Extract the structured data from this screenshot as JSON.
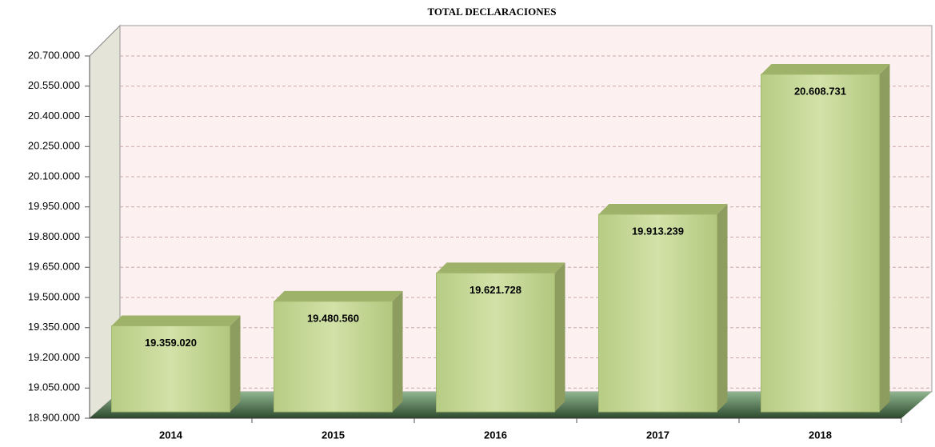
{
  "chart_data": {
    "type": "bar3d",
    "title": "TOTAL  DECLARACIONES",
    "categories": [
      "2014",
      "2015",
      "2016",
      "2017",
      "2018"
    ],
    "values": [
      19359020,
      19480560,
      19621728,
      19913239,
      20608731
    ],
    "value_labels": [
      "19.359.020",
      "19.480.560",
      "19.621.728",
      "19.913.239",
      "20.608.731"
    ],
    "color": "#c5d798",
    "ylim": [
      18900000,
      20700000
    ],
    "yticks": [
      {
        "value": 18900000,
        "label": "18.900.000"
      },
      {
        "value": 19050000,
        "label": "19.050.000"
      },
      {
        "value": 19200000,
        "label": "19.200.000"
      },
      {
        "value": 19350000,
        "label": "19.350.000"
      },
      {
        "value": 19500000,
        "label": "19.500.000"
      },
      {
        "value": 19650000,
        "label": "19.650.000"
      },
      {
        "value": 19800000,
        "label": "19.800.000"
      },
      {
        "value": 19950000,
        "label": "19.950.000"
      },
      {
        "value": 20100000,
        "label": "20.100.000"
      },
      {
        "value": 20250000,
        "label": "20.250.000"
      },
      {
        "value": 20400000,
        "label": "20.400.000"
      },
      {
        "value": 20550000,
        "label": "20.550.000"
      },
      {
        "value": 20700000,
        "label": "20.700.000"
      }
    ],
    "grid": true
  }
}
